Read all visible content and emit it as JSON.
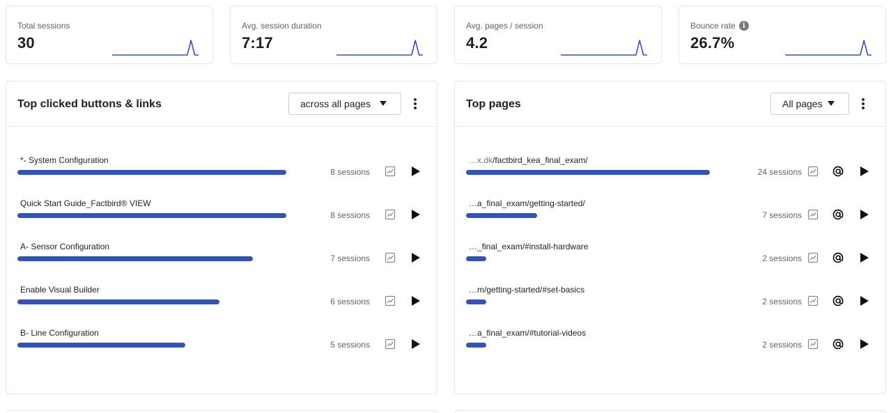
{
  "kpis": [
    {
      "label": "Total sessions",
      "value": "30",
      "info": false,
      "sparkline": [
        0,
        0,
        0,
        0,
        0,
        0,
        0,
        0,
        0,
        0,
        0,
        0,
        0,
        0,
        0,
        0,
        0,
        0,
        0,
        0,
        0,
        1,
        0,
        0
      ],
      "color": "#3352b6"
    },
    {
      "label": "Avg. session duration",
      "value": "7:17",
      "info": false,
      "sparkline": [
        0,
        0,
        0,
        0,
        0,
        0,
        0,
        0,
        0,
        0,
        0,
        0,
        0,
        0,
        0,
        0,
        0,
        0,
        0,
        0,
        0,
        1,
        0,
        0
      ],
      "color": "#3352b6"
    },
    {
      "label": "Avg. pages / session",
      "value": "4.2",
      "info": false,
      "sparkline": [
        0,
        0,
        0,
        0,
        0,
        0,
        0,
        0,
        0,
        0,
        0,
        0,
        0,
        0,
        0,
        0,
        0,
        0,
        0,
        0,
        0,
        1,
        0,
        0
      ],
      "color": "#3352b6"
    },
    {
      "label": "Bounce rate",
      "value": "26.7%",
      "info": true,
      "sparkline": [
        0,
        0,
        0,
        0,
        0,
        0,
        0,
        0,
        0,
        0,
        0,
        0,
        0,
        0,
        0,
        0,
        0,
        0,
        0,
        0,
        0,
        1,
        0,
        0
      ],
      "color": "#3352b6"
    }
  ],
  "clicked": {
    "title": "Top clicked buttons & links",
    "filter": "across all pages",
    "max_sessions": 8,
    "rows": [
      {
        "label": "*- System Configuration",
        "sessions": 8,
        "sessions_text": "8 sessions"
      },
      {
        "label": "Quick Start Guide_Factbird® VIEW",
        "sessions": 8,
        "sessions_text": "8 sessions"
      },
      {
        "label": "A- Sensor Configuration",
        "sessions": 7,
        "sessions_text": "7 sessions"
      },
      {
        "label": "Enable Visual Builder",
        "sessions": 6,
        "sessions_text": "6 sessions"
      },
      {
        "label": "B- Line Configuration",
        "sessions": 5,
        "sessions_text": "5 sessions"
      }
    ]
  },
  "pages": {
    "title": "Top pages",
    "filter": "All pages",
    "max_sessions": 24,
    "rows": [
      {
        "prefix": "…x.dk",
        "label": "/factbird_kea_final_exam/",
        "sessions": 24,
        "sessions_text": "24 sessions"
      },
      {
        "prefix": "",
        "label": "…a_final_exam/getting-started/",
        "sessions": 7,
        "sessions_text": "7 sessions"
      },
      {
        "prefix": "",
        "label": "…_final_exam/#install-hardware",
        "sessions": 2,
        "sessions_text": "2 sessions"
      },
      {
        "prefix": "",
        "label": "…m/getting-started/#set-basics",
        "sessions": 2,
        "sessions_text": "2 sessions"
      },
      {
        "prefix": "",
        "label": "…a_final_exam/#tutorial-videos",
        "sessions": 2,
        "sessions_text": "2 sessions"
      }
    ]
  },
  "icons": {
    "trend": "trend-chart-icon",
    "heatmap": "at-sign-icon",
    "play": "play-icon",
    "menu": "kebab-menu-icon",
    "info": "info-icon"
  },
  "colors": {
    "accent": "#3352b6"
  }
}
